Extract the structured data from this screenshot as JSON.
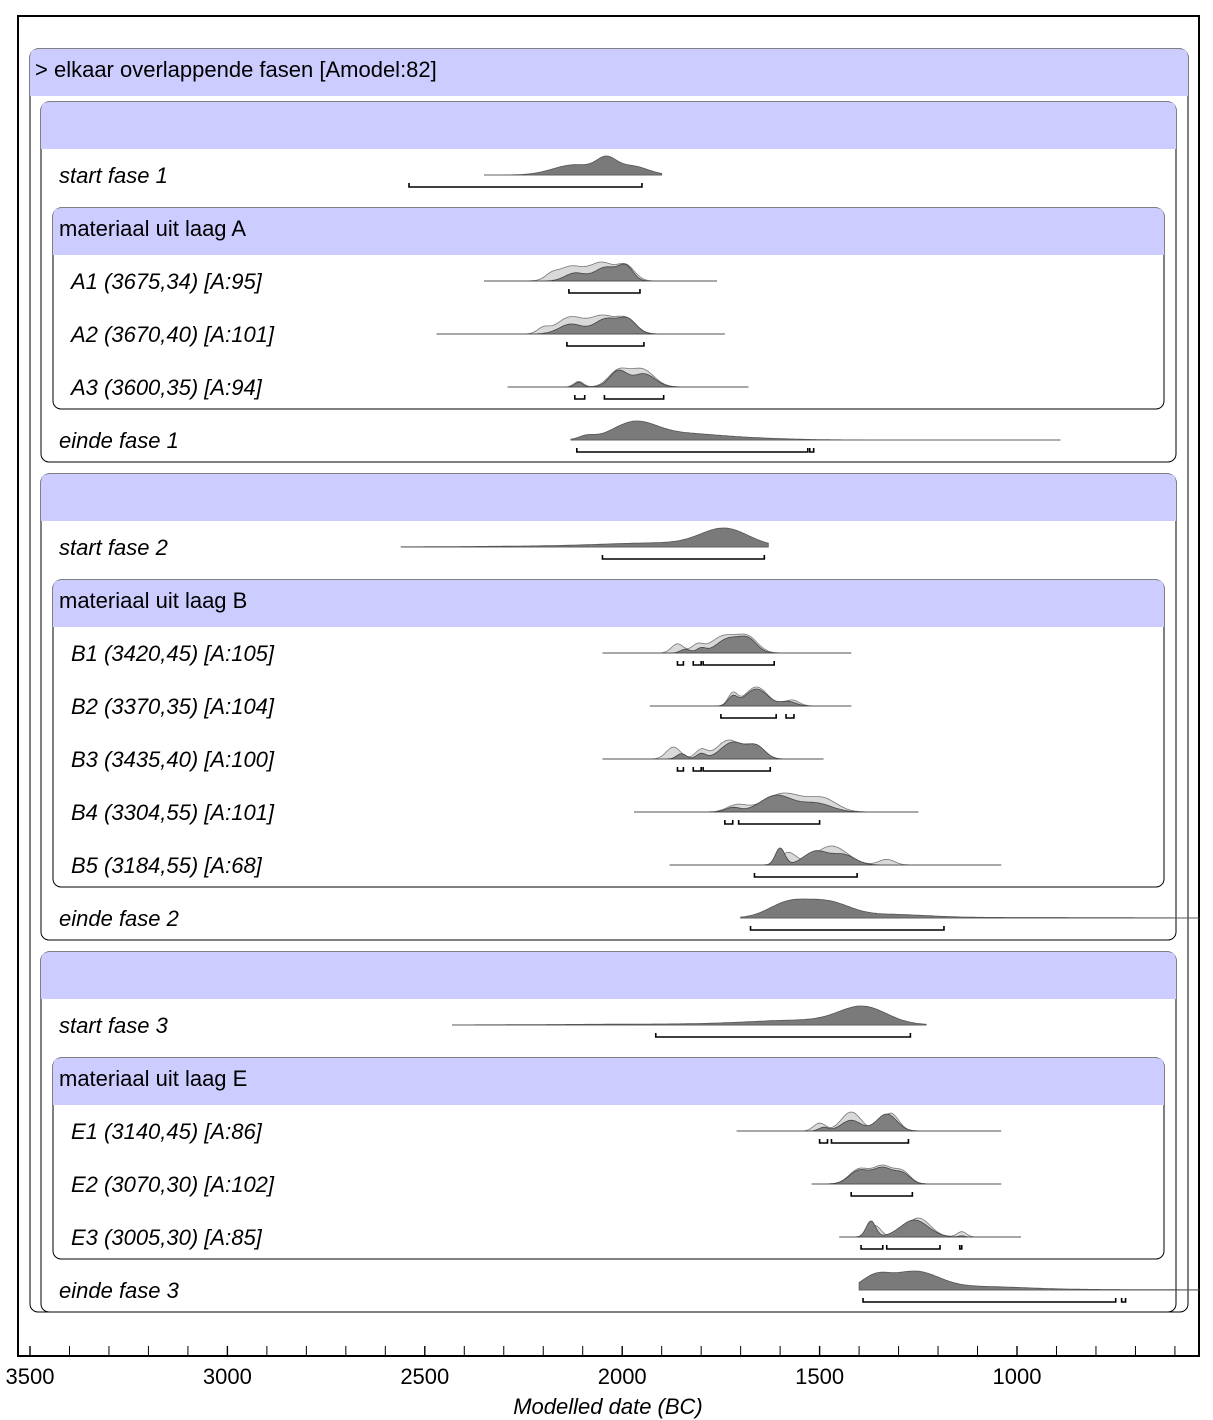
{
  "chart_data": {
    "type": "oxcal-multiplot",
    "title": "> elkaar overlappende fasen [Amodel:82]",
    "xlabel": "Modelled date (BC)",
    "xlim": [
      3500,
      450
    ],
    "ticks": [
      "3500",
      "3000",
      "2500",
      "2000",
      "1500",
      "1000"
    ],
    "tick_values": [
      3500,
      3000,
      2500,
      2000,
      1500,
      1000
    ],
    "minor_step": 100,
    "phases": [
      {
        "start": {
          "label": "start fase 1",
          "range": [
            2350,
            1900
          ],
          "peaks": [
            [
              2120,
              55,
              0.7
            ],
            [
              2040,
              25,
              0.9
            ],
            [
              1975,
              40,
              0.6
            ]
          ],
          "hpd": [
            [
              2540,
              1950
            ]
          ]
        },
        "group": {
          "title": "materiaal uit laag A",
          "items": [
            {
              "label": "A1 (3675,34) [A:95]",
              "range": [
                2350,
                1760
              ],
              "prior": [
                [
                  2180,
                  15,
                  0.2
                ],
                [
                  2130,
                  35,
                  0.75
                ],
                [
                  2050,
                  30,
                  0.9
                ],
                [
                  1990,
                  22,
                  0.75
                ]
              ],
              "post": [
                [
                  2120,
                  25,
                  0.45
                ],
                [
                  2040,
                  30,
                  0.8
                ],
                [
                  1990,
                  18,
                  0.75
                ]
              ],
              "hpd": [
                [
                  2135,
                  1955
                ]
              ]
            },
            {
              "label": "A2 (3670,40) [A:101]",
              "range": [
                2470,
                1740
              ],
              "prior": [
                [
                  2200,
                  15,
                  0.25
                ],
                [
                  2130,
                  35,
                  0.8
                ],
                [
                  2050,
                  30,
                  0.8
                ],
                [
                  1990,
                  25,
                  0.7
                ]
              ],
              "post": [
                [
                  2130,
                  30,
                  0.55
                ],
                [
                  2040,
                  30,
                  0.85
                ],
                [
                  1985,
                  22,
                  0.75
                ]
              ],
              "hpd": [
                [
                  2140,
                  1945
                ]
              ]
            },
            {
              "label": "A3 (3600,35) [A:94]",
              "range": [
                2290,
                1680
              ],
              "prior": [
                [
                  2110,
                  12,
                  0.3
                ],
                [
                  2010,
                  25,
                  0.85
                ],
                [
                  1950,
                  30,
                  0.95
                ]
              ],
              "post": [
                [
                  2110,
                  10,
                  0.25
                ],
                [
                  2010,
                  22,
                  0.85
                ],
                [
                  1945,
                  28,
                  0.7
                ]
              ],
              "hpd": [
                [
                  2120,
                  2095
                ],
                [
                  2045,
                  1895
                ]
              ]
            }
          ]
        },
        "end": {
          "label": "einde fase 1",
          "range": [
            2130,
            890
          ],
          "peaks": [
            [
              2090,
              20,
              0.2
            ],
            [
              1970,
              55,
              0.9
            ],
            [
              1860,
              90,
              0.3
            ],
            [
              1720,
              120,
              0.12
            ]
          ],
          "hpd": [
            [
              2115,
              1530
            ],
            [
              1525,
              1515
            ]
          ]
        }
      },
      {
        "start": {
          "label": "start fase 2",
          "range": [
            2560,
            1630
          ],
          "peaks": [
            [
              1740,
              60,
              0.95
            ],
            [
              1900,
              140,
              0.2
            ],
            [
              2150,
              220,
              0.05
            ]
          ],
          "hpd": [
            [
              2050,
              1640
            ]
          ]
        },
        "group": {
          "title": "materiaal uit laag B",
          "items": [
            {
              "label": "B1 (3420,45) [A:105]",
              "range": [
                2050,
                1420
              ],
              "prior": [
                [
                  1860,
                  15,
                  0.5
                ],
                [
                  1810,
                  15,
                  0.4
                ],
                [
                  1740,
                  35,
                  0.95
                ],
                [
                  1680,
                  25,
                  0.75
                ]
              ],
              "post": [
                [
                  1840,
                  12,
                  0.25
                ],
                [
                  1800,
                  12,
                  0.3
                ],
                [
                  1730,
                  30,
                  0.95
                ],
                [
                  1680,
                  22,
                  0.8
                ]
              ],
              "hpd": [
                [
                  1860,
                  1845
                ],
                [
                  1820,
                  1800
                ],
                [
                  1795,
                  1615
                ]
              ]
            },
            {
              "label": "B2 (3370,35) [A:104]",
              "range": [
                1930,
                1420
              ],
              "prior": [
                [
                  1720,
                  12,
                  0.6
                ],
                [
                  1660,
                  28,
                  0.95
                ],
                [
                  1570,
                  18,
                  0.3
                ]
              ],
              "post": [
                [
                  1720,
                  12,
                  0.5
                ],
                [
                  1660,
                  28,
                  0.95
                ],
                [
                  1580,
                  20,
                  0.25
                ]
              ],
              "hpd": [
                [
                  1750,
                  1610
                ],
                [
                  1585,
                  1565
                ]
              ]
            },
            {
              "label": "B3 (3435,40) [A:100]",
              "range": [
                2050,
                1490
              ],
              "prior": [
                [
                  1870,
                  18,
                  0.6
                ],
                [
                  1800,
                  15,
                  0.45
                ],
                [
                  1730,
                  30,
                  0.95
                ],
                [
                  1670,
                  20,
                  0.6
                ]
              ],
              "post": [
                [
                  1850,
                  12,
                  0.3
                ],
                [
                  1800,
                  12,
                  0.3
                ],
                [
                  1720,
                  30,
                  0.95
                ],
                [
                  1660,
                  22,
                  0.7
                ]
              ],
              "hpd": [
                [
                  1860,
                  1845
                ],
                [
                  1820,
                  1800
                ],
                [
                  1795,
                  1625
                ]
              ]
            },
            {
              "label": "B4 (3304,55) [A:101]",
              "range": [
                1970,
                1250
              ],
              "prior": [
                [
                  1710,
                  25,
                  0.3
                ],
                [
                  1590,
                  50,
                  0.85
                ],
                [
                  1490,
                  35,
                  0.55
                ]
              ],
              "post": [
                [
                  1720,
                  18,
                  0.25
                ],
                [
                  1610,
                  40,
                  0.95
                ],
                [
                  1510,
                  40,
                  0.5
                ]
              ],
              "hpd": [
                [
                  1740,
                  1720
                ],
                [
                  1705,
                  1500
                ]
              ]
            },
            {
              "label": "B5 (3184,55) [A:68]",
              "range": [
                1880,
                1040
              ],
              "prior": [
                [
                  1580,
                  20,
                  0.55
                ],
                [
                  1470,
                  40,
                  0.85
                ],
                [
                  1330,
                  20,
                  0.25
                ]
              ],
              "post": [
                [
                  1600,
                  12,
                  0.75
                ],
                [
                  1510,
                  30,
                  0.6
                ],
                [
                  1440,
                  30,
                  0.45
                ]
              ],
              "hpd": [
                [
                  1665,
                  1405
                ]
              ]
            }
          ]
        },
        "end": {
          "label": "einde fase 2",
          "range": [
            1700,
            450
          ],
          "peaks": [
            [
              1580,
              50,
              0.85
            ],
            [
              1480,
              55,
              0.85
            ],
            [
              1330,
              100,
              0.2
            ],
            [
              1000,
              250,
              0.03
            ]
          ],
          "hpd": [
            [
              1675,
              1185
            ]
          ]
        }
      },
      {
        "start": {
          "label": "start fase 3",
          "range": [
            2430,
            1230
          ],
          "peaks": [
            [
              1390,
              60,
              0.95
            ],
            [
              1550,
              130,
              0.25
            ],
            [
              1900,
              250,
              0.05
            ]
          ],
          "hpd": [
            [
              1915,
              1270
            ]
          ]
        },
        "group": {
          "title": "materiaal uit laag E",
          "items": [
            {
              "label": "E1 (3140,45) [A:86]",
              "range": [
                1710,
                1040
              ],
              "prior": [
                [
                  1500,
                  15,
                  0.35
                ],
                [
                  1420,
                  25,
                  0.85
                ],
                [
                  1320,
                  20,
                  0.8
                ]
              ],
              "post": [
                [
                  1490,
                  12,
                  0.2
                ],
                [
                  1420,
                  25,
                  0.6
                ],
                [
                  1330,
                  25,
                  0.95
                ]
              ],
              "hpd": [
                [
                  1500,
                  1480
                ],
                [
                  1470,
                  1275
                ]
              ]
            },
            {
              "label": "E2 (3070,30) [A:102]",
              "range": [
                1520,
                1040
              ],
              "prior": [
                [
                  1400,
                  25,
                  0.75
                ],
                [
                  1340,
                  25,
                  0.9
                ],
                [
                  1290,
                  20,
                  0.6
                ]
              ],
              "post": [
                [
                  1400,
                  25,
                  0.8
                ],
                [
                  1340,
                  25,
                  0.95
                ],
                [
                  1290,
                  20,
                  0.6
                ]
              ],
              "hpd": [
                [
                  1420,
                  1265
                ]
              ]
            },
            {
              "label": "E3 (3005,30) [A:85]",
              "range": [
                1450,
                990
              ],
              "prior": [
                [
                  1360,
                  15,
                  0.55
                ],
                [
                  1250,
                  30,
                  0.9
                ],
                [
                  1140,
                  12,
                  0.25
                ]
              ],
              "post": [
                [
                  1370,
                  12,
                  0.75
                ],
                [
                  1260,
                  35,
                  0.8
                ],
                [
                  1140,
                  8,
                  0.05
                ]
              ],
              "hpd": [
                [
                  1395,
                  1340
                ],
                [
                  1330,
                  1195
                ],
                [
                  1145,
                  1140
                ]
              ]
            }
          ]
        },
        "end": {
          "label": "einde fase 3",
          "range": [
            1400,
            450
          ],
          "peaks": [
            [
              1360,
              35,
              0.55
            ],
            [
              1260,
              60,
              0.8
            ],
            [
              1100,
              120,
              0.15
            ],
            [
              800,
              200,
              0.02
            ]
          ],
          "hpd": [
            [
              1390,
              750
            ],
            [
              735,
              725
            ]
          ]
        }
      }
    ]
  }
}
